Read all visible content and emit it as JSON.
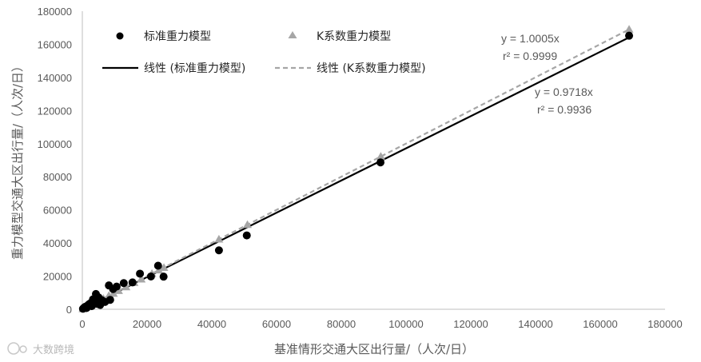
{
  "watermark": "大数跨境",
  "chart_data": {
    "type": "scatter",
    "xlabel": "基准情形交通大区出行量/（人次/日）",
    "ylabel": "重力模型交通大区出行量/（人次/日）",
    "xlim": [
      0,
      180000
    ],
    "ylim": [
      0,
      180000
    ],
    "x_ticks": [
      0,
      20000,
      40000,
      60000,
      80000,
      100000,
      120000,
      140000,
      160000,
      180000
    ],
    "y_ticks": [
      0,
      20000,
      40000,
      60000,
      80000,
      100000,
      120000,
      140000,
      160000,
      180000
    ],
    "grid": false,
    "legend_position": "top",
    "series": [
      {
        "name": "标准重力模型",
        "marker": "circle",
        "color": "#000000",
        "points": [
          [
            200,
            300
          ],
          [
            500,
            900
          ],
          [
            900,
            1500
          ],
          [
            1300,
            800
          ],
          [
            1700,
            2400
          ],
          [
            2100,
            3100
          ],
          [
            2500,
            3600
          ],
          [
            2900,
            1900
          ],
          [
            3300,
            6000
          ],
          [
            3700,
            4800
          ],
          [
            4200,
            9200
          ],
          [
            4600,
            3300
          ],
          [
            5000,
            7200
          ],
          [
            5500,
            2600
          ],
          [
            6000,
            5500
          ],
          [
            7000,
            4400
          ],
          [
            8200,
            14400
          ],
          [
            8600,
            5700
          ],
          [
            9500,
            12200
          ],
          [
            10600,
            13700
          ],
          [
            12800,
            15800
          ],
          [
            15500,
            16200
          ],
          [
            17800,
            21500
          ],
          [
            21200,
            19800
          ],
          [
            23400,
            26300
          ],
          [
            25100,
            19700
          ],
          [
            42200,
            35600
          ],
          [
            50800,
            44600
          ],
          [
            92100,
            88700
          ],
          [
            168900,
            165200
          ]
        ]
      },
      {
        "name": "K系数重力模型",
        "marker": "triangle",
        "color": "#a6a6a6",
        "points": [
          [
            200,
            250
          ],
          [
            600,
            650
          ],
          [
            1100,
            1050
          ],
          [
            1600,
            1650
          ],
          [
            2200,
            2150
          ],
          [
            2800,
            2850
          ],
          [
            3400,
            3350
          ],
          [
            4100,
            4150
          ],
          [
            4800,
            4750
          ],
          [
            5600,
            5650
          ],
          [
            6500,
            6450
          ],
          [
            8200,
            8250
          ],
          [
            9600,
            9550
          ],
          [
            11200,
            11250
          ],
          [
            13500,
            13450
          ],
          [
            16000,
            16050
          ],
          [
            18200,
            18150
          ],
          [
            21500,
            21550
          ],
          [
            23600,
            23650
          ],
          [
            25200,
            25150
          ],
          [
            42200,
            42300
          ],
          [
            51000,
            51100
          ],
          [
            92200,
            92300
          ],
          [
            168900,
            169000
          ]
        ]
      }
    ],
    "trendlines": [
      {
        "name": "线性 (标准重力模型)",
        "slope": 0.9718,
        "style": "solid",
        "color": "#000000",
        "equation": "y = 0.9718x",
        "r2": "r² = 0.9936"
      },
      {
        "name": "线性 (K系数重力模型)",
        "slope": 1.0005,
        "style": "dashed",
        "color": "#a6a6a6",
        "equation": "y = 1.0005x",
        "r2": "r² = 0.9999"
      }
    ]
  }
}
